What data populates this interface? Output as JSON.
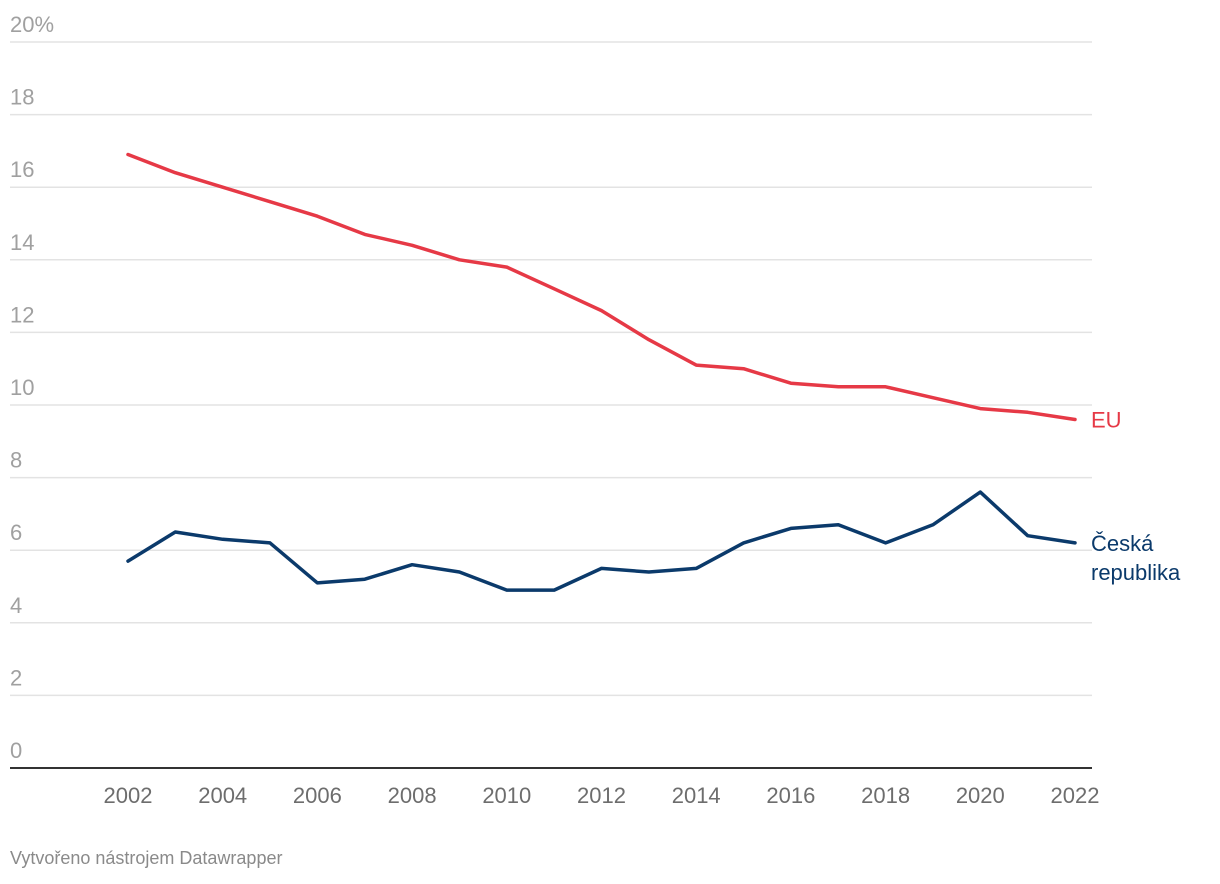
{
  "chart_data": {
    "type": "line",
    "x": [
      2002,
      2003,
      2004,
      2005,
      2006,
      2007,
      2008,
      2009,
      2010,
      2011,
      2012,
      2013,
      2014,
      2015,
      2016,
      2017,
      2018,
      2019,
      2020,
      2021,
      2022
    ],
    "series": [
      {
        "name": "EU",
        "color": "#e63946",
        "values": [
          16.9,
          16.4,
          16.0,
          15.6,
          15.2,
          14.7,
          14.4,
          14.0,
          13.8,
          13.2,
          12.6,
          11.8,
          11.1,
          11.0,
          10.6,
          10.5,
          10.5,
          10.2,
          9.9,
          9.8,
          9.6
        ]
      },
      {
        "name": "Česká republika",
        "name_lines": [
          "Česká",
          "republika"
        ],
        "color": "#0b3a6b",
        "values": [
          5.7,
          6.5,
          6.3,
          6.2,
          5.1,
          5.2,
          5.6,
          5.4,
          4.9,
          4.9,
          5.5,
          5.4,
          5.5,
          6.2,
          6.6,
          6.7,
          6.2,
          6.7,
          7.6,
          6.4,
          6.2
        ]
      }
    ],
    "ylim": [
      0,
      20
    ],
    "yticks": [
      0,
      2,
      4,
      6,
      8,
      10,
      12,
      14,
      16,
      18,
      20
    ],
    "ytick_labels": [
      "0",
      "2",
      "4",
      "6",
      "8",
      "10",
      "12",
      "14",
      "16",
      "18",
      "20%"
    ],
    "xticks": [
      2002,
      2004,
      2006,
      2008,
      2010,
      2012,
      2014,
      2016,
      2018,
      2020,
      2022
    ],
    "xlim": [
      2002,
      2022
    ],
    "grid": true,
    "title": "",
    "xlabel": "",
    "ylabel": ""
  },
  "footer": "Vytvořeno nástrojem Datawrapper"
}
